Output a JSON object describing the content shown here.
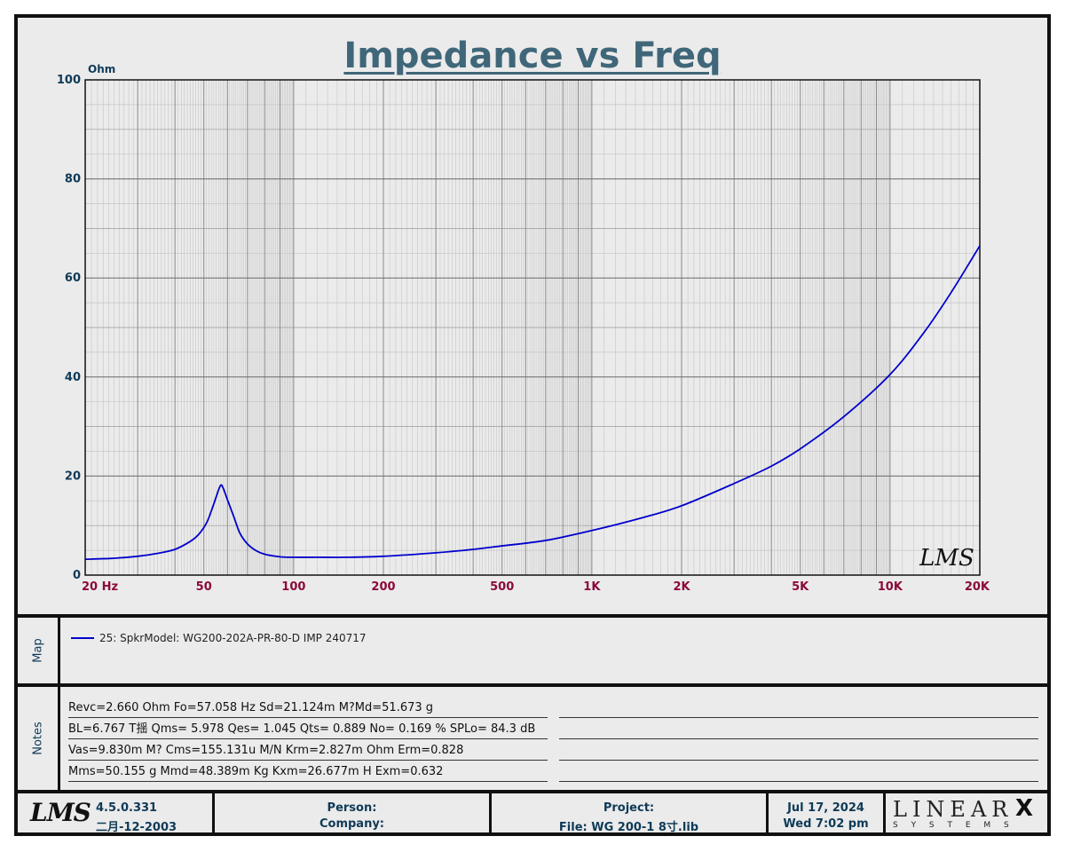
{
  "chart_data": {
    "type": "line",
    "title": "Impedance vs Freq",
    "ylabel": "Ohm",
    "xscale": "log",
    "xlim": [
      20,
      20000
    ],
    "ylim": [
      0,
      100
    ],
    "yticks": [
      0,
      20,
      40,
      60,
      80,
      100
    ],
    "xticks": [
      {
        "value": 20,
        "label": "20  Hz"
      },
      {
        "value": 50,
        "label": "50"
      },
      {
        "value": 100,
        "label": "100"
      },
      {
        "value": 200,
        "label": "200"
      },
      {
        "value": 500,
        "label": "500"
      },
      {
        "value": 1000,
        "label": "1K"
      },
      {
        "value": 2000,
        "label": "2K"
      },
      {
        "value": 5000,
        "label": "5K"
      },
      {
        "value": 10000,
        "label": "10K"
      },
      {
        "value": 20000,
        "label": "20K"
      }
    ],
    "grid": true,
    "series": [
      {
        "name": "25: SpkrModel: WG200-202A-PR-80-D IMP 240717",
        "color": "#0000cc",
        "x": [
          20,
          25,
          30,
          35,
          40,
          45,
          48,
          51,
          53,
          55,
          56,
          57.06,
          58,
          60,
          63,
          66,
          70,
          75,
          80,
          90,
          100,
          120,
          150,
          200,
          300,
          400,
          500,
          700,
          1000,
          1500,
          2000,
          3000,
          4000,
          5000,
          7000,
          10000,
          13000,
          16000,
          20000
        ],
        "y": [
          3.2,
          3.4,
          3.8,
          4.4,
          5.2,
          6.8,
          8.2,
          10.5,
          13.0,
          15.8,
          17.2,
          18.2,
          17.6,
          15.2,
          11.8,
          8.5,
          6.3,
          4.9,
          4.2,
          3.7,
          3.6,
          3.6,
          3.6,
          3.8,
          4.5,
          5.2,
          5.9,
          7.0,
          9.0,
          11.7,
          14.0,
          18.5,
          22.0,
          25.5,
          32.0,
          40.5,
          49.0,
          57.0,
          66.5
        ]
      }
    ]
  },
  "watermark": "LMS",
  "map": {
    "label": "Map",
    "entries": [
      {
        "text": "25: SpkrModel: WG200-202A-PR-80-D IMP 240717",
        "color": "#0000cc"
      }
    ]
  },
  "notes": {
    "label": "Notes",
    "lines": [
      "Revc=2.660 Ohm  Fo=57.058 Hz  Sd=21.124m M?Md=51.673 g",
      "BL=6.767 T揺  Qms= 5.978  Qes= 1.045  Qts= 0.889  No= 0.169 %  SPLo= 84.3 dB",
      "Vas=9.830m M? Cms=155.131u M/N  Krm=2.827m Ohm  Erm=0.828",
      "Mms=50.155 g  Mmd=48.389m Kg  Kxm=26.677m H  Exm=0.632"
    ]
  },
  "footer": {
    "logo": "LMS",
    "version": "4.5.0.331",
    "version_date": "二月-12-2003",
    "person_label": "Person:",
    "company_label": "Company:",
    "project_label": "Project:",
    "file_label": "File: WG 200-1 8寸.lib",
    "date": "Jul 17, 2024",
    "time": "Wed  7:02 pm",
    "brand_top": "LINEAR",
    "brand_x": "X",
    "brand_bottom": "S Y S T E M S"
  }
}
